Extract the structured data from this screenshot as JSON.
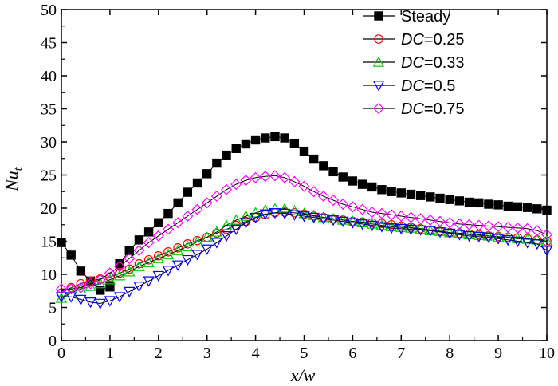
{
  "chart_data": {
    "type": "line",
    "xlabel": "x/w",
    "ylabel": "Nu",
    "ylabel_sub": "t",
    "xlim": [
      0,
      10
    ],
    "ylim": [
      0,
      50
    ],
    "xticks": [
      "0",
      "1",
      "2",
      "3",
      "4",
      "5",
      "6",
      "7",
      "8",
      "9",
      "10"
    ],
    "yticks": [
      "0",
      "5",
      "10",
      "15",
      "20",
      "25",
      "30",
      "35",
      "40",
      "45",
      "50"
    ],
    "legend_position": "top-right",
    "grid": false,
    "series": [
      {
        "name": "Steady",
        "legend_prefix": "",
        "legend_value": "",
        "marker": "square-filled",
        "color": "#000000",
        "x": [
          0,
          0.2,
          0.4,
          0.6,
          0.8,
          1.0,
          1.2,
          1.4,
          1.6,
          1.8,
          2.0,
          2.2,
          2.4,
          2.6,
          2.8,
          3.0,
          3.2,
          3.4,
          3.6,
          3.8,
          4.0,
          4.2,
          4.4,
          4.6,
          4.8,
          5.0,
          5.2,
          5.4,
          5.6,
          5.8,
          6.0,
          6.2,
          6.4,
          6.6,
          6.8,
          7.0,
          7.2,
          7.4,
          7.6,
          7.8,
          8.0,
          8.2,
          8.4,
          8.6,
          8.8,
          9.0,
          9.2,
          9.4,
          9.6,
          9.8,
          10.0
        ],
        "y": [
          14.8,
          12.9,
          10.5,
          9.0,
          7.6,
          8.1,
          11.6,
          13.6,
          15.2,
          16.4,
          17.8,
          19.2,
          20.8,
          22.4,
          23.8,
          25.2,
          26.8,
          28.0,
          29.0,
          29.7,
          30.3,
          30.6,
          30.8,
          30.6,
          29.8,
          28.6,
          27.4,
          26.4,
          25.5,
          24.7,
          24.1,
          23.6,
          23.2,
          22.8,
          22.5,
          22.3,
          22.1,
          21.9,
          21.7,
          21.5,
          21.3,
          21.1,
          20.9,
          20.8,
          20.6,
          20.5,
          20.3,
          20.2,
          20.1,
          19.9,
          19.7
        ]
      },
      {
        "name": "",
        "legend_prefix": "DC",
        "legend_value": "=0.25",
        "marker": "circle",
        "color": "#ff0000",
        "x": [
          0,
          0.2,
          0.4,
          0.6,
          0.8,
          1.0,
          1.2,
          1.4,
          1.6,
          1.8,
          2.0,
          2.2,
          2.4,
          2.6,
          2.8,
          3.0,
          3.2,
          3.4,
          3.6,
          3.8,
          4.0,
          4.2,
          4.4,
          4.6,
          4.8,
          5.0,
          5.2,
          5.4,
          5.6,
          5.8,
          6.0,
          6.2,
          6.4,
          6.6,
          6.8,
          7.0,
          7.2,
          7.4,
          7.6,
          7.8,
          8.0,
          8.2,
          8.4,
          8.6,
          8.8,
          9.0,
          9.2,
          9.4,
          9.6,
          9.8,
          10.0
        ],
        "y": [
          7.2,
          8.0,
          8.6,
          9.0,
          9.3,
          9.6,
          10.2,
          10.8,
          11.6,
          12.2,
          12.8,
          13.4,
          14.0,
          14.6,
          15.1,
          15.6,
          16.2,
          16.8,
          17.4,
          18.0,
          18.6,
          19.0,
          19.3,
          19.4,
          19.3,
          19.1,
          18.8,
          18.6,
          18.4,
          18.2,
          18.0,
          17.9,
          17.8,
          17.7,
          17.5,
          17.3,
          17.1,
          16.9,
          16.7,
          16.5,
          16.3,
          16.2,
          16.1,
          16.0,
          15.8,
          15.7,
          15.6,
          15.5,
          15.4,
          15.2,
          15.0
        ]
      },
      {
        "name": "",
        "legend_prefix": "DC",
        "legend_value": "=0.33",
        "marker": "triangle-up",
        "color": "#00cc00",
        "x": [
          0,
          0.2,
          0.4,
          0.6,
          0.8,
          1.0,
          1.2,
          1.4,
          1.6,
          1.8,
          2.0,
          2.2,
          2.4,
          2.6,
          2.8,
          3.0,
          3.2,
          3.4,
          3.6,
          3.8,
          4.0,
          4.2,
          4.4,
          4.6,
          4.8,
          5.0,
          5.2,
          5.4,
          5.6,
          5.8,
          6.0,
          6.2,
          6.4,
          6.6,
          6.8,
          7.0,
          7.2,
          7.4,
          7.6,
          7.8,
          8.0,
          8.2,
          8.4,
          8.6,
          8.8,
          9.0,
          9.2,
          9.4,
          9.6,
          9.8,
          10.0
        ],
        "y": [
          6.4,
          7.2,
          7.8,
          8.2,
          8.6,
          9.2,
          9.8,
          10.4,
          11.2,
          11.8,
          12.4,
          13.0,
          13.6,
          14.2,
          14.9,
          15.6,
          16.4,
          17.4,
          18.2,
          18.8,
          19.3,
          19.7,
          19.9,
          19.9,
          19.6,
          19.2,
          18.9,
          18.6,
          18.4,
          18.2,
          18.0,
          17.8,
          17.6,
          17.4,
          17.2,
          17.1,
          17.0,
          16.8,
          16.6,
          16.5,
          16.3,
          16.2,
          16.0,
          15.9,
          15.8,
          15.6,
          15.5,
          15.4,
          15.3,
          15.2,
          15.0
        ]
      },
      {
        "name": "",
        "legend_prefix": "DC",
        "legend_value": "=0.5",
        "marker": "triangle-down",
        "color": "#0000ff",
        "x": [
          0,
          0.2,
          0.4,
          0.6,
          0.8,
          1.0,
          1.2,
          1.4,
          1.6,
          1.8,
          2.0,
          2.2,
          2.4,
          2.6,
          2.8,
          3.0,
          3.2,
          3.4,
          3.6,
          3.8,
          4.0,
          4.2,
          4.4,
          4.6,
          4.8,
          5.0,
          5.2,
          5.4,
          5.6,
          5.8,
          6.0,
          6.2,
          6.4,
          6.6,
          6.8,
          7.0,
          7.2,
          7.4,
          7.6,
          7.8,
          8.0,
          8.2,
          8.4,
          8.6,
          8.8,
          9.0,
          9.2,
          9.4,
          9.6,
          9.8,
          10.0
        ],
        "y": [
          6.6,
          6.6,
          6.2,
          5.8,
          5.6,
          6.0,
          6.6,
          7.4,
          8.2,
          9.0,
          9.8,
          10.6,
          11.4,
          12.2,
          13.0,
          13.8,
          14.8,
          15.8,
          16.8,
          17.8,
          18.6,
          19.1,
          19.3,
          19.2,
          19.0,
          18.8,
          18.6,
          18.4,
          18.2,
          18.0,
          17.8,
          17.6,
          17.4,
          17.2,
          17.0,
          16.9,
          16.8,
          16.7,
          16.6,
          16.4,
          16.2,
          16.0,
          15.8,
          15.7,
          15.6,
          15.4,
          15.2,
          15.0,
          14.8,
          14.6,
          13.6
        ]
      },
      {
        "name": "",
        "legend_prefix": "DC",
        "legend_value": "=0.75",
        "marker": "diamond",
        "color": "#ff00ff",
        "x": [
          0,
          0.2,
          0.4,
          0.6,
          0.8,
          1.0,
          1.2,
          1.4,
          1.6,
          1.8,
          2.0,
          2.2,
          2.4,
          2.6,
          2.8,
          3.0,
          3.2,
          3.4,
          3.6,
          3.8,
          4.0,
          4.2,
          4.4,
          4.6,
          4.8,
          5.0,
          5.2,
          5.4,
          5.6,
          5.8,
          6.0,
          6.2,
          6.4,
          6.6,
          6.8,
          7.0,
          7.2,
          7.4,
          7.6,
          7.8,
          8.0,
          8.2,
          8.4,
          8.6,
          8.8,
          9.0,
          9.2,
          9.4,
          9.6,
          9.8,
          10.0
        ],
        "y": [
          7.8,
          7.8,
          8.0,
          8.6,
          9.2,
          10.2,
          11.2,
          12.4,
          13.6,
          14.8,
          15.8,
          16.8,
          17.8,
          18.8,
          19.8,
          20.8,
          21.8,
          22.8,
          23.6,
          24.2,
          24.6,
          24.8,
          24.9,
          24.6,
          24.0,
          23.3,
          22.5,
          21.8,
          21.2,
          20.6,
          20.2,
          19.8,
          19.4,
          19.2,
          19.0,
          18.8,
          18.6,
          18.4,
          18.2,
          18.0,
          17.8,
          17.6,
          17.5,
          17.4,
          17.3,
          17.2,
          17.1,
          17.0,
          16.9,
          16.6,
          16.0
        ]
      }
    ]
  }
}
